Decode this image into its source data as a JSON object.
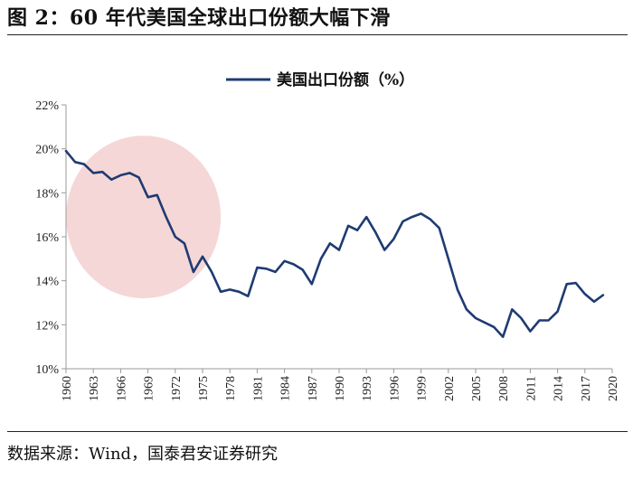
{
  "figure": {
    "title": "图 2：60 年代美国全球出口份额大幅下滑",
    "source": "数据来源：Wind，国泰君安证券研究"
  },
  "colors": {
    "line": "#1f3b73",
    "highlight": "#f2c9c9",
    "axis": "#999999"
  },
  "chart_data": {
    "type": "line",
    "title": "",
    "xlabel": "",
    "ylabel": "",
    "ylim": [
      10,
      22
    ],
    "xlim": [
      1960,
      2020
    ],
    "y_ticks": [
      "22%",
      "20%",
      "18%",
      "16%",
      "14%",
      "12%",
      "10%"
    ],
    "y_tick_values": [
      22,
      20,
      18,
      16,
      14,
      12,
      10
    ],
    "x_ticks": [
      "1960",
      "1963",
      "1966",
      "1969",
      "1972",
      "1975",
      "1978",
      "1981",
      "1984",
      "1987",
      "1990",
      "1993",
      "1996",
      "1999",
      "2002",
      "2005",
      "2008",
      "2011",
      "2014",
      "2017",
      "2020"
    ],
    "legend": {
      "entries": [
        "美国出口份额（%）"
      ],
      "position": "top-center"
    },
    "highlight": {
      "shape": "ellipse",
      "x_range": [
        1960,
        1977
      ],
      "y_range": [
        13.2,
        20.6
      ]
    },
    "series": [
      {
        "name": "美国出口份额（%）",
        "x": [
          1960,
          1961,
          1962,
          1963,
          1964,
          1965,
          1966,
          1967,
          1968,
          1969,
          1970,
          1971,
          1972,
          1973,
          1974,
          1975,
          1976,
          1977,
          1978,
          1979,
          1980,
          1981,
          1982,
          1983,
          1984,
          1985,
          1986,
          1987,
          1988,
          1989,
          1990,
          1991,
          1992,
          1993,
          1994,
          1995,
          1996,
          1997,
          1998,
          1999,
          2000,
          2001,
          2002,
          2003,
          2004,
          2005,
          2006,
          2007,
          2008,
          2009,
          2010,
          2011,
          2012,
          2013,
          2014,
          2015,
          2016,
          2017,
          2018,
          2019
        ],
        "values": [
          19.9,
          19.4,
          19.3,
          18.9,
          18.95,
          18.6,
          18.8,
          18.9,
          18.7,
          17.8,
          17.9,
          16.9,
          16.0,
          15.7,
          14.4,
          15.1,
          14.4,
          13.5,
          13.6,
          13.5,
          13.3,
          14.6,
          14.55,
          14.4,
          14.9,
          14.75,
          14.5,
          13.85,
          15.0,
          15.7,
          15.4,
          16.5,
          16.3,
          16.9,
          16.2,
          15.4,
          15.9,
          16.7,
          16.9,
          17.05,
          16.8,
          16.4,
          15.0,
          13.6,
          12.7,
          12.3,
          12.1,
          11.9,
          11.45,
          12.7,
          12.3,
          11.7,
          12.2,
          12.2,
          12.6,
          13.85,
          13.9,
          13.4,
          13.05,
          13.35
        ]
      }
    ]
  }
}
